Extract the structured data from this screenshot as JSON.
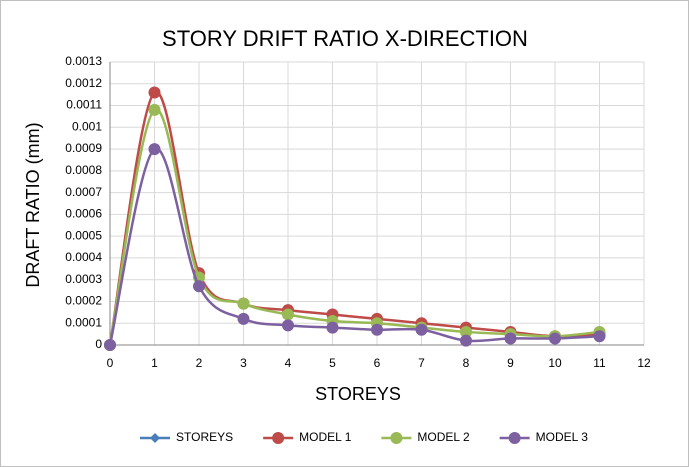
{
  "chart_data": {
    "type": "line",
    "title": "STORY DRIFT RATIO X-DIRECTION",
    "x_label": "STOREYS",
    "y_label": "DRAFT RATIO (mm)",
    "x": [
      0,
      1,
      2,
      3,
      4,
      5,
      6,
      7,
      8,
      9,
      10,
      11
    ],
    "series": [
      {
        "name": "STOREYS",
        "color": "#4a7ebb",
        "marker": "diamond",
        "values": [
          0,
          null,
          null,
          null,
          null,
          null,
          null,
          null,
          null,
          null,
          null,
          null
        ]
      },
      {
        "name": "MODEL 1",
        "color": "#be4b48",
        "marker": "circle",
        "values": [
          0,
          0.00116,
          0.00033,
          0.00019,
          0.00016,
          0.00014,
          0.00012,
          0.0001,
          8e-05,
          6e-05,
          4e-05,
          5e-05
        ]
      },
      {
        "name": "MODEL 2",
        "color": "#98b954",
        "marker": "circle",
        "values": [
          0,
          0.00108,
          0.00031,
          0.00019,
          0.00014,
          0.00011,
          0.0001,
          8e-05,
          6e-05,
          5e-05,
          4e-05,
          6e-05
        ]
      },
      {
        "name": "MODEL 3",
        "color": "#7d60a0",
        "marker": "circle",
        "values": [
          0,
          0.0009,
          0.00027,
          0.00012,
          9e-05,
          8e-05,
          7e-05,
          7e-05,
          2e-05,
          3e-05,
          3e-05,
          4e-05
        ]
      }
    ],
    "xlim": [
      0,
      12
    ],
    "xticks": [
      0,
      1,
      2,
      3,
      4,
      5,
      6,
      7,
      8,
      9,
      10,
      11,
      12
    ],
    "ylim": [
      0,
      0.0013
    ],
    "yticks": [
      0,
      0.0001,
      0.0002,
      0.0003,
      0.0004,
      0.0005,
      0.0006,
      0.0007,
      0.0008,
      0.0009,
      0.001,
      0.0011,
      0.0012,
      0.0013
    ],
    "grid": true,
    "smooth": true,
    "legend": "bottom"
  }
}
